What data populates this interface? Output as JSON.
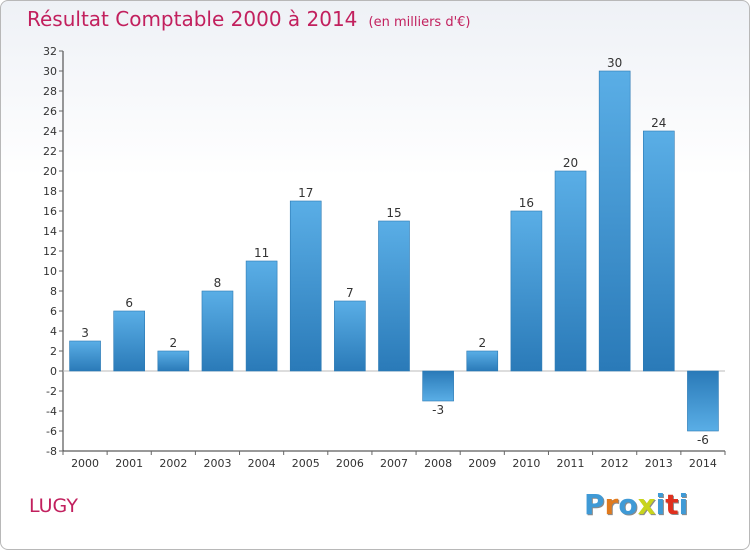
{
  "title": "Résultat Comptable 2000 à 2014",
  "unit_note": "(en milliers d'€)",
  "town": "LUGY",
  "logo": {
    "letters": [
      "P",
      "r",
      "o",
      "x",
      "i",
      "t",
      "i"
    ],
    "colors": [
      "#3f9ad6",
      "#e07a1e",
      "#3f9ad6",
      "#c8d41e",
      "#3f9ad6",
      "#e0301e",
      "#3f9ad6"
    ]
  },
  "colors": {
    "bar_light": "#5aaee6",
    "bar_dark": "#2a7ab8",
    "axis": "#333333",
    "grid_tick": "#666666"
  },
  "chart_data": {
    "type": "bar",
    "title": "Résultat Comptable 2000 à 2014",
    "xlabel": "",
    "ylabel": "",
    "categories": [
      "2000",
      "2001",
      "2002",
      "2003",
      "2004",
      "2005",
      "2006",
      "2007",
      "2008",
      "2009",
      "2010",
      "2011",
      "2012",
      "2013",
      "2014"
    ],
    "values": [
      3,
      6,
      2,
      8,
      11,
      17,
      7,
      15,
      -3,
      2,
      16,
      20,
      30,
      24,
      -6
    ],
    "ylim": [
      -8,
      32
    ],
    "yticks": [
      -8,
      -6,
      -4,
      -2,
      0,
      2,
      4,
      6,
      8,
      10,
      12,
      14,
      16,
      18,
      20,
      22,
      24,
      26,
      28,
      30,
      32
    ]
  }
}
